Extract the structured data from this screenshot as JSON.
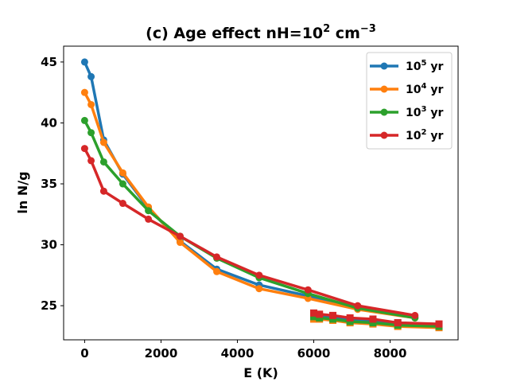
{
  "chart_data": {
    "type": "line",
    "title": {
      "prefix": "(c) Age effect nH=10",
      "exp": "2",
      "unit": " cm",
      "unit_exp": "−3"
    },
    "xlabel": "E (K)",
    "ylabel": "ln N/g",
    "xlim": [
      -550,
      9780
    ],
    "ylim": [
      22.2,
      46.3
    ],
    "xticks": [
      0,
      2000,
      4000,
      6000,
      8000
    ],
    "yticks": [
      25,
      30,
      35,
      40,
      45
    ],
    "legend_position": "top-right",
    "series": [
      {
        "name": "10^5 yr",
        "label_base": "10",
        "label_exp": "5",
        "label_unit": " yr",
        "color": "#1f77b4",
        "x": [
          0,
          170,
          500,
          1000,
          1670,
          2500,
          3460,
          4570,
          5850,
          7150,
          8650
        ],
        "y": [
          45.0,
          43.8,
          38.6,
          35.8,
          33.0,
          30.3,
          28.0,
          26.7,
          25.8,
          24.9,
          24.1
        ],
        "tail_x": [
          6000,
          6150,
          6500,
          6950,
          7550,
          8200,
          9280
        ],
        "tail_y": [
          24.2,
          24.1,
          24.0,
          23.8,
          23.7,
          23.6,
          23.4
        ]
      },
      {
        "name": "10^4 yr",
        "label_base": "10",
        "label_exp": "4",
        "label_unit": " yr",
        "color": "#ff7f0e",
        "x": [
          0,
          170,
          500,
          1000,
          1670,
          2500,
          3460,
          4570,
          5850,
          7150,
          8650
        ],
        "y": [
          42.5,
          41.5,
          38.4,
          35.9,
          33.1,
          30.2,
          27.8,
          26.4,
          25.6,
          24.7,
          24.0
        ],
        "tail_x": [
          6000,
          6150,
          6500,
          6950,
          7550,
          8200,
          9280
        ],
        "tail_y": [
          23.9,
          23.9,
          23.8,
          23.6,
          23.5,
          23.3,
          23.2
        ]
      },
      {
        "name": "10^3 yr",
        "label_base": "10",
        "label_exp": "3",
        "label_unit": " yr",
        "color": "#2ca02c",
        "x": [
          0,
          170,
          500,
          1000,
          1670,
          2500,
          3460,
          4570,
          5850,
          7150,
          8650
        ],
        "y": [
          40.2,
          39.2,
          36.8,
          35.0,
          32.8,
          30.7,
          28.9,
          27.3,
          26.0,
          24.8,
          24.0
        ],
        "tail_x": [
          6000,
          6150,
          6500,
          6950,
          7550,
          8200,
          9280
        ],
        "tail_y": [
          24.1,
          24.0,
          23.9,
          23.7,
          23.6,
          23.4,
          23.3
        ]
      },
      {
        "name": "10^2 yr",
        "label_base": "10",
        "label_exp": "2",
        "label_unit": " yr",
        "color": "#d62728",
        "x": [
          0,
          170,
          500,
          1000,
          1670,
          2500,
          3460,
          4570,
          5850,
          7150,
          8650
        ],
        "y": [
          37.9,
          36.9,
          34.4,
          33.4,
          32.1,
          30.7,
          29.0,
          27.5,
          26.3,
          25.0,
          24.2
        ],
        "tail_x": [
          6000,
          6150,
          6500,
          6950,
          7550,
          8200,
          9280
        ],
        "tail_y": [
          24.4,
          24.3,
          24.2,
          24.0,
          23.9,
          23.6,
          23.5
        ]
      }
    ]
  }
}
